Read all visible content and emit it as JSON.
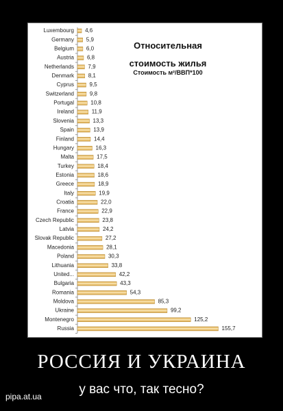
{
  "chart_data": {
    "type": "bar",
    "orientation": "horizontal",
    "title": "Относительная стоимость жилья",
    "subtitle": "Стоимость м²/ВВП*100",
    "color": "#d9a441",
    "categories": [
      "Luxembourg",
      "Germany",
      "Belgium",
      "Austria",
      "Netherlands",
      "Denmark",
      "Cyprus",
      "Switzerland",
      "Portugal",
      "Ireland",
      "Slovenia",
      "Spain",
      "Finland",
      "Hungary",
      "Malta",
      "Turkey",
      "Estonia",
      "Greece",
      "Italy",
      "Croatia",
      "France",
      "Czech Republic",
      "Latvia",
      "Slovak Republic",
      "Macedonia",
      "Poland",
      "Lithuania",
      "United...",
      "Bulgaria",
      "Romania",
      "Moldova",
      "Ukraine",
      "Montenegro",
      "Russia"
    ],
    "values": [
      4.6,
      5.9,
      6.0,
      6.8,
      7.9,
      8.1,
      9.5,
      9.8,
      10.8,
      11.9,
      13.3,
      13.9,
      14.4,
      16.3,
      17.5,
      18.4,
      18.6,
      18.9,
      19.9,
      22.0,
      22.9,
      23.8,
      24.2,
      27.2,
      28.1,
      30.3,
      33.8,
      42.2,
      43.3,
      54.3,
      85.3,
      99.2,
      125.2,
      155.7
    ],
    "value_labels": [
      "4,6",
      "5,9",
      "6,0",
      "6,8",
      "7,9",
      "8,1",
      "9,5",
      "9,8",
      "10,8",
      "11,9",
      "13,3",
      "13,9",
      "14,4",
      "16,3",
      "17,5",
      "18,4",
      "18,6",
      "18,9",
      "19,9",
      "22,0",
      "22,9",
      "23,8",
      "24,2",
      "27,2",
      "28,1",
      "30,3",
      "33,8",
      "42,2",
      "43,3",
      "54,3",
      "85,3",
      "99,2",
      "125,2",
      "155,7"
    ]
  },
  "poster": {
    "headline": "РОССИЯ И УКРАИНА",
    "caption": "у вас что, так тесно?",
    "watermark": "pipa.at.ua"
  }
}
